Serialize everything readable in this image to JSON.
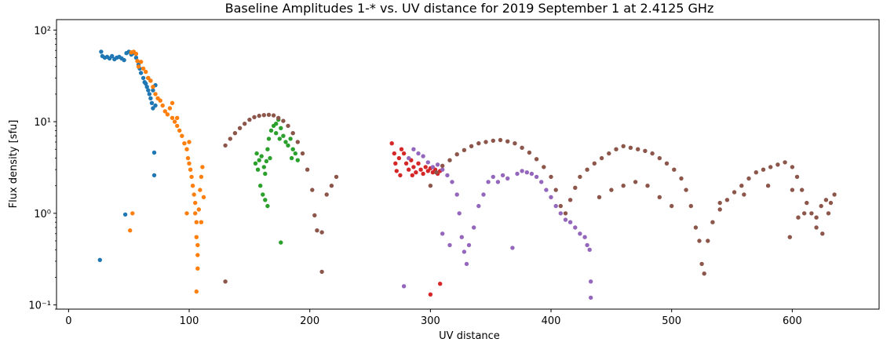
{
  "chart_data": {
    "type": "scatter",
    "title": "Baseline Amplitudes 1-* vs. UV distance for 2019 September 1 at 2.4125 GHz",
    "xlabel": "UV distance",
    "ylabel": "Flux density [sfu]",
    "xlim": [
      -10,
      672
    ],
    "ylim": [
      0.09,
      130
    ],
    "yscale": "log",
    "grid": false,
    "x_ticks": [
      0,
      100,
      200,
      300,
      400,
      500,
      600
    ],
    "x_tick_labels": [
      "0",
      "100",
      "200",
      "300",
      "400",
      "500",
      "600"
    ],
    "y_ticks": [
      0.1,
      1,
      10,
      100
    ],
    "y_tick_labels": [
      "10⁻¹",
      "10⁰",
      "10¹",
      "10²"
    ],
    "series": [
      {
        "color": "#1f77b4",
        "points": [
          [
            26,
            0.31
          ],
          [
            27,
            58
          ],
          [
            28,
            52
          ],
          [
            30,
            50
          ],
          [
            32,
            51
          ],
          [
            34,
            49
          ],
          [
            36,
            52
          ],
          [
            38,
            48
          ],
          [
            40,
            50
          ],
          [
            42,
            51
          ],
          [
            44,
            49
          ],
          [
            46,
            47
          ],
          [
            47,
            0.97
          ],
          [
            48,
            56
          ],
          [
            50,
            58
          ],
          [
            52,
            54
          ],
          [
            54,
            56
          ],
          [
            56,
            50
          ],
          [
            58,
            42
          ],
          [
            59,
            38
          ],
          [
            60,
            34
          ],
          [
            62,
            30
          ],
          [
            63,
            27
          ],
          [
            64,
            26
          ],
          [
            65,
            24
          ],
          [
            66,
            22
          ],
          [
            67,
            20
          ],
          [
            68,
            18
          ],
          [
            69,
            16
          ],
          [
            70,
            14
          ],
          [
            71,
            4.6
          ],
          [
            71,
            2.6
          ],
          [
            72,
            25
          ],
          [
            72,
            15
          ],
          [
            66,
            30
          ],
          [
            68,
            28
          ],
          [
            70,
            22
          ]
        ]
      },
      {
        "color": "#ff7f0e",
        "points": [
          [
            51,
            0.65
          ],
          [
            53,
            1.0
          ],
          [
            52,
            57
          ],
          [
            54,
            58
          ],
          [
            56,
            55
          ],
          [
            57,
            46
          ],
          [
            58,
            40
          ],
          [
            60,
            45
          ],
          [
            62,
            38
          ],
          [
            64,
            35
          ],
          [
            66,
            30
          ],
          [
            68,
            28
          ],
          [
            70,
            24
          ],
          [
            72,
            20
          ],
          [
            74,
            18
          ],
          [
            76,
            17
          ],
          [
            78,
            15
          ],
          [
            80,
            13
          ],
          [
            82,
            12
          ],
          [
            84,
            14
          ],
          [
            86,
            11
          ],
          [
            88,
            10
          ],
          [
            90,
            9
          ],
          [
            92,
            8
          ],
          [
            94,
            7
          ],
          [
            96,
            5.8
          ],
          [
            98,
            5
          ],
          [
            99,
            4
          ],
          [
            100,
            3.5
          ],
          [
            101,
            3
          ],
          [
            102,
            2.5
          ],
          [
            103,
            2
          ],
          [
            104,
            1.6
          ],
          [
            105,
            1.3
          ],
          [
            105,
            1.0
          ],
          [
            106,
            0.8
          ],
          [
            106,
            0.55
          ],
          [
            107,
            0.45
          ],
          [
            107,
            0.35
          ],
          [
            107,
            0.25
          ],
          [
            106,
            0.14
          ],
          [
            108,
            1.1
          ],
          [
            109,
            1.8
          ],
          [
            110,
            2.5
          ],
          [
            111,
            3.2
          ],
          [
            112,
            1.5
          ],
          [
            110,
            0.8
          ],
          [
            98,
            1.0
          ],
          [
            100,
            6
          ],
          [
            90,
            11
          ],
          [
            86,
            16
          ]
        ]
      },
      {
        "color": "#2ca02c",
        "points": [
          [
            155,
            3.5
          ],
          [
            156,
            4.5
          ],
          [
            157,
            3.0
          ],
          [
            158,
            3.8
          ],
          [
            160,
            4.2
          ],
          [
            162,
            3.2
          ],
          [
            163,
            2.7
          ],
          [
            164,
            3.7
          ],
          [
            165,
            5.0
          ],
          [
            166,
            6.5
          ],
          [
            167,
            4.0
          ],
          [
            168,
            8.0
          ],
          [
            170,
            9.0
          ],
          [
            172,
            7.5
          ],
          [
            174,
            10.5
          ],
          [
            175,
            6.5
          ],
          [
            176,
            8.5
          ],
          [
            178,
            7.0
          ],
          [
            180,
            6.0
          ],
          [
            182,
            5.5
          ],
          [
            184,
            6.5
          ],
          [
            186,
            5.0
          ],
          [
            188,
            4.5
          ],
          [
            190,
            3.8
          ],
          [
            159,
            2.0
          ],
          [
            161,
            1.6
          ],
          [
            163,
            1.4
          ],
          [
            165,
            1.2
          ],
          [
            176,
            0.48
          ],
          [
            172,
            9.5
          ],
          [
            185,
            4.0
          ]
        ]
      },
      {
        "color": "#d62728",
        "points": [
          [
            268,
            5.8
          ],
          [
            270,
            4.5
          ],
          [
            271,
            3.5
          ],
          [
            272,
            2.9
          ],
          [
            274,
            4.0
          ],
          [
            276,
            5.0
          ],
          [
            278,
            4.5
          ],
          [
            280,
            3.5
          ],
          [
            282,
            3.0
          ],
          [
            284,
            3.8
          ],
          [
            286,
            3.2
          ],
          [
            288,
            2.8
          ],
          [
            290,
            3.5
          ],
          [
            292,
            3.0
          ],
          [
            294,
            2.7
          ],
          [
            296,
            3.2
          ],
          [
            298,
            2.9
          ],
          [
            300,
            3.1
          ],
          [
            302,
            2.8
          ],
          [
            304,
            3.0
          ],
          [
            306,
            2.7
          ],
          [
            308,
            2.9
          ],
          [
            275,
            2.6
          ],
          [
            285,
            2.6
          ],
          [
            300,
            0.13
          ],
          [
            308,
            0.17
          ]
        ]
      },
      {
        "color": "#9467bd",
        "points": [
          [
            278,
            0.16
          ],
          [
            282,
            4.0
          ],
          [
            286,
            5.0
          ],
          [
            290,
            4.5
          ],
          [
            294,
            4.2
          ],
          [
            298,
            3.6
          ],
          [
            302,
            3.2
          ],
          [
            306,
            3.4
          ],
          [
            310,
            3.0
          ],
          [
            314,
            2.6
          ],
          [
            318,
            2.2
          ],
          [
            322,
            1.6
          ],
          [
            324,
            1.0
          ],
          [
            326,
            0.55
          ],
          [
            328,
            0.38
          ],
          [
            330,
            0.28
          ],
          [
            332,
            0.45
          ],
          [
            336,
            0.7
          ],
          [
            340,
            1.2
          ],
          [
            344,
            1.6
          ],
          [
            348,
            2.2
          ],
          [
            352,
            2.5
          ],
          [
            356,
            2.2
          ],
          [
            360,
            2.6
          ],
          [
            364,
            2.4
          ],
          [
            368,
            0.42
          ],
          [
            372,
            2.7
          ],
          [
            376,
            2.9
          ],
          [
            380,
            2.8
          ],
          [
            384,
            2.7
          ],
          [
            388,
            2.5
          ],
          [
            392,
            2.2
          ],
          [
            396,
            1.8
          ],
          [
            400,
            1.5
          ],
          [
            404,
            1.2
          ],
          [
            408,
            1.0
          ],
          [
            412,
            0.85
          ],
          [
            416,
            0.8
          ],
          [
            420,
            0.7
          ],
          [
            424,
            0.6
          ],
          [
            428,
            0.55
          ],
          [
            430,
            0.45
          ],
          [
            432,
            0.4
          ],
          [
            433,
            0.18
          ],
          [
            433,
            0.12
          ],
          [
            310,
            0.6
          ],
          [
            316,
            0.45
          ]
        ]
      },
      {
        "color": "#8c564b",
        "points": [
          [
            130,
            0.18
          ],
          [
            130,
            5.5
          ],
          [
            134,
            6.5
          ],
          [
            138,
            7.5
          ],
          [
            142,
            8.5
          ],
          [
            146,
            9.5
          ],
          [
            150,
            10.5
          ],
          [
            154,
            11.2
          ],
          [
            158,
            11.6
          ],
          [
            162,
            11.8
          ],
          [
            166,
            11.9
          ],
          [
            170,
            11.7
          ],
          [
            174,
            11.0
          ],
          [
            178,
            10.2
          ],
          [
            182,
            9.0
          ],
          [
            186,
            7.5
          ],
          [
            190,
            6.0
          ],
          [
            194,
            4.5
          ],
          [
            198,
            3.0
          ],
          [
            202,
            1.8
          ],
          [
            204,
            0.95
          ],
          [
            206,
            0.65
          ],
          [
            210,
            0.62
          ],
          [
            210,
            0.23
          ],
          [
            214,
            1.6
          ],
          [
            218,
            2.0
          ],
          [
            222,
            2.5
          ],
          [
            300,
            2.0
          ],
          [
            305,
            2.8
          ],
          [
            310,
            3.3
          ],
          [
            316,
            3.8
          ],
          [
            322,
            4.4
          ],
          [
            328,
            4.9
          ],
          [
            334,
            5.4
          ],
          [
            340,
            5.8
          ],
          [
            346,
            6.0
          ],
          [
            352,
            6.2
          ],
          [
            358,
            6.3
          ],
          [
            364,
            6.1
          ],
          [
            370,
            5.8
          ],
          [
            376,
            5.2
          ],
          [
            382,
            4.6
          ],
          [
            388,
            3.9
          ],
          [
            394,
            3.2
          ],
          [
            400,
            2.5
          ],
          [
            404,
            1.8
          ],
          [
            408,
            1.2
          ],
          [
            412,
            1.0
          ],
          [
            416,
            1.4
          ],
          [
            420,
            1.9
          ],
          [
            424,
            2.5
          ],
          [
            430,
            3.0
          ],
          [
            436,
            3.5
          ],
          [
            442,
            4.0
          ],
          [
            448,
            4.5
          ],
          [
            454,
            5.0
          ],
          [
            460,
            5.4
          ],
          [
            466,
            5.2
          ],
          [
            472,
            5.0
          ],
          [
            478,
            4.8
          ],
          [
            484,
            4.5
          ],
          [
            490,
            4.0
          ],
          [
            496,
            3.5
          ],
          [
            502,
            3.0
          ],
          [
            508,
            2.4
          ],
          [
            512,
            1.8
          ],
          [
            516,
            1.2
          ],
          [
            520,
            0.7
          ],
          [
            523,
            0.5
          ],
          [
            525,
            0.28
          ],
          [
            527,
            0.22
          ],
          [
            530,
            0.5
          ],
          [
            534,
            0.8
          ],
          [
            540,
            1.1
          ],
          [
            546,
            1.4
          ],
          [
            552,
            1.7
          ],
          [
            558,
            2.0
          ],
          [
            564,
            2.4
          ],
          [
            570,
            2.8
          ],
          [
            576,
            3.0
          ],
          [
            582,
            3.2
          ],
          [
            588,
            3.4
          ],
          [
            594,
            3.6
          ],
          [
            600,
            3.2
          ],
          [
            604,
            2.5
          ],
          [
            608,
            1.8
          ],
          [
            612,
            1.3
          ],
          [
            616,
            1.0
          ],
          [
            620,
            0.9
          ],
          [
            624,
            1.2
          ],
          [
            628,
            1.4
          ],
          [
            632,
            1.3
          ],
          [
            635,
            1.6
          ],
          [
            440,
            1.5
          ],
          [
            450,
            1.8
          ],
          [
            460,
            2.0
          ],
          [
            470,
            2.2
          ],
          [
            480,
            2.0
          ],
          [
            490,
            1.5
          ],
          [
            500,
            1.2
          ],
          [
            540,
            1.3
          ],
          [
            560,
            1.6
          ],
          [
            580,
            2.0
          ],
          [
            600,
            1.8
          ],
          [
            610,
            1.0
          ],
          [
            620,
            0.7
          ],
          [
            625,
            0.6
          ],
          [
            598,
            0.55
          ],
          [
            605,
            0.9
          ],
          [
            630,
            1.0
          ]
        ]
      }
    ]
  }
}
